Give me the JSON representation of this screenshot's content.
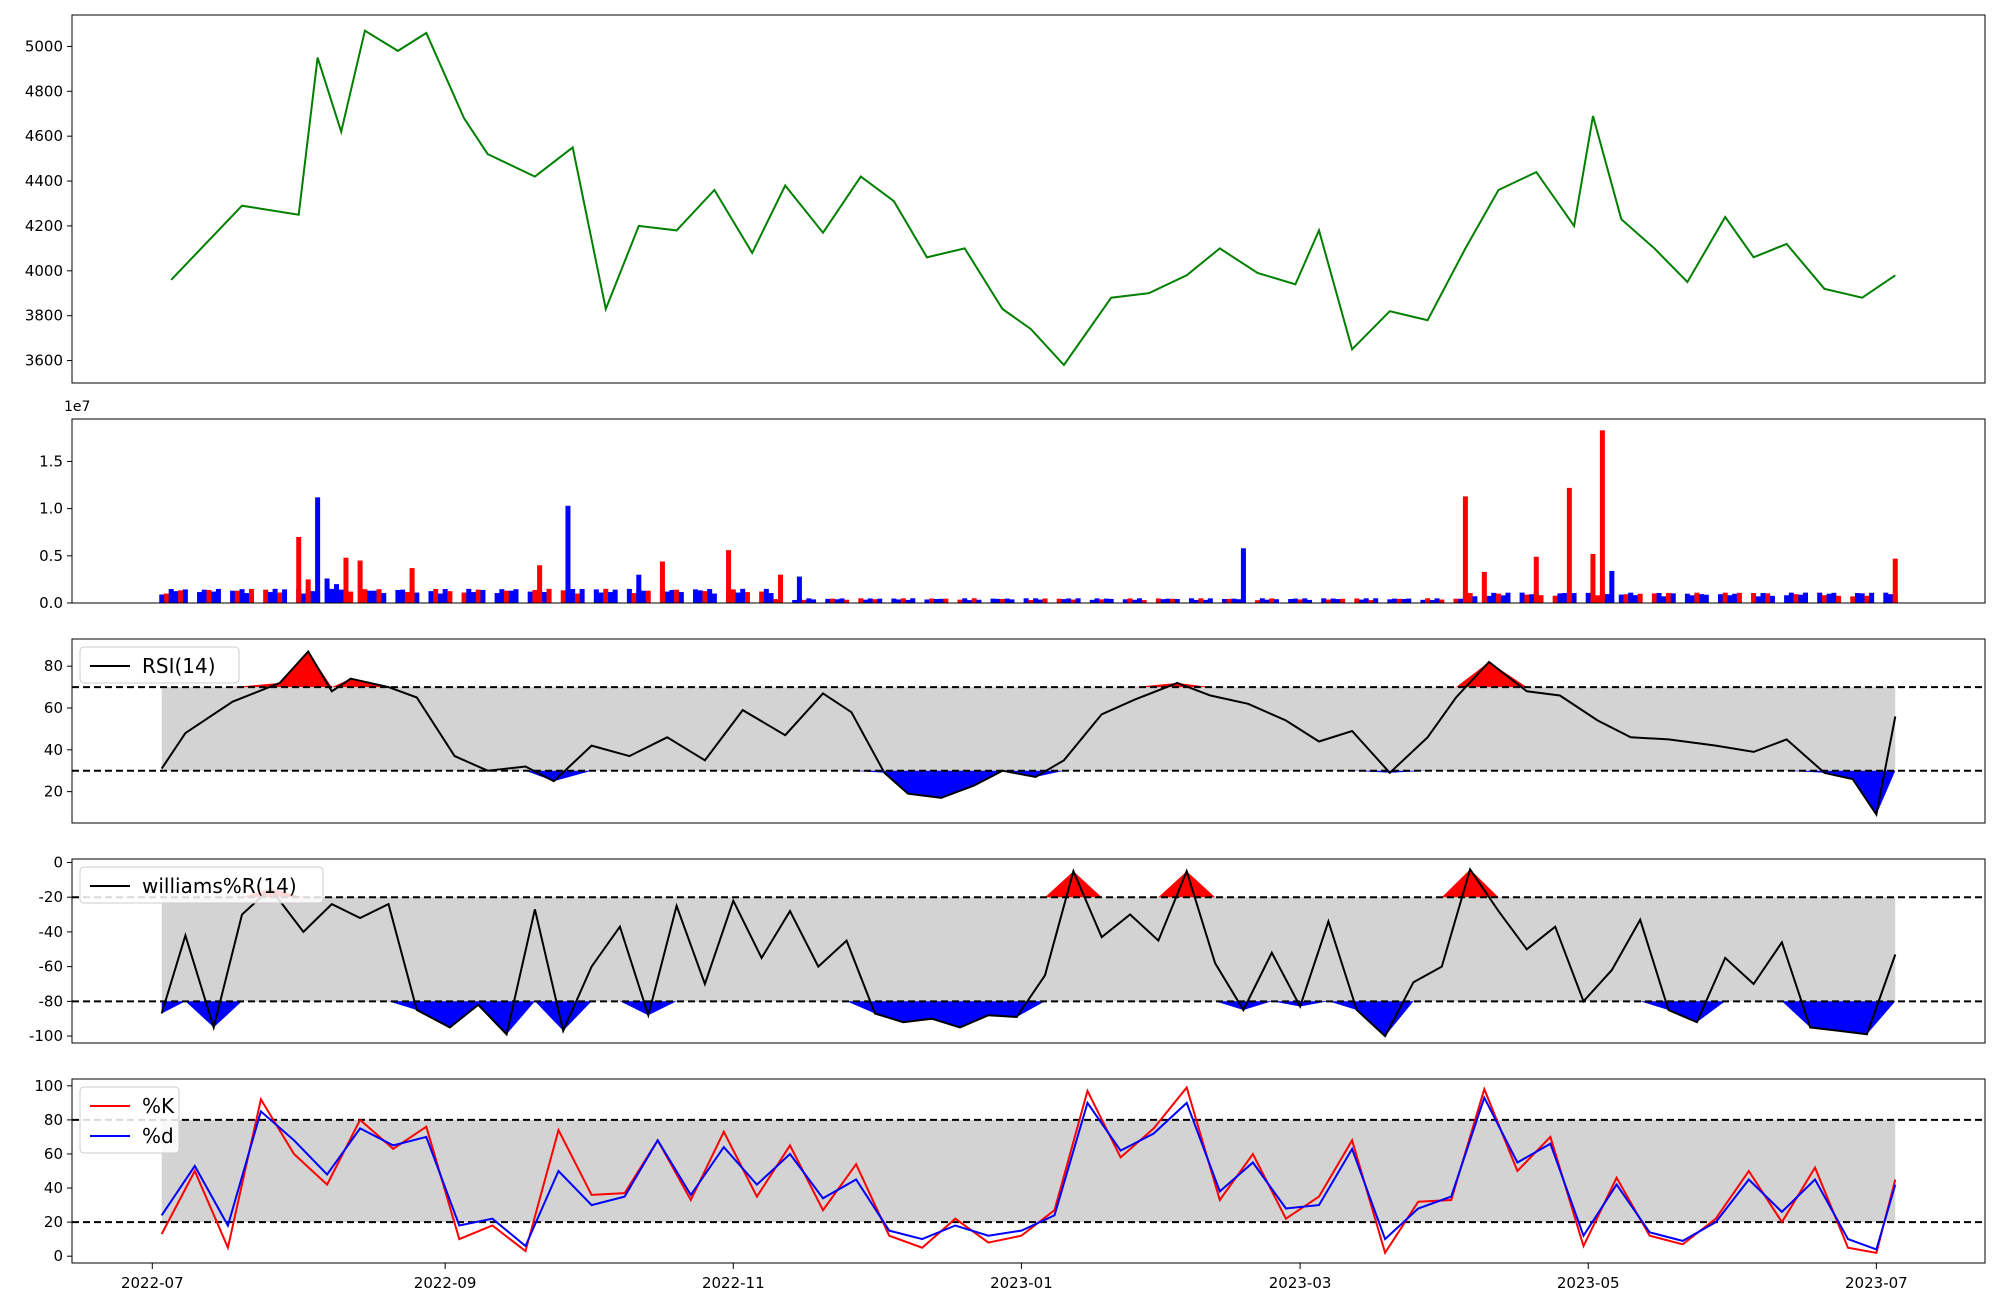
{
  "chart_data": [
    {
      "type": "line",
      "panel": "price",
      "ylim": [
        3500,
        5140
      ],
      "yticks": [
        "3600",
        "3800",
        "4000",
        "4200",
        "4400",
        "4600",
        "4800",
        "5000"
      ],
      "line_color": "#008000",
      "x": [
        "2022-07-05",
        "2022-07-20",
        "2022-08-01",
        "2022-08-05",
        "2022-08-10",
        "2022-08-15",
        "2022-08-22",
        "2022-08-28",
        "2022-09-05",
        "2022-09-10",
        "2022-09-20",
        "2022-09-28",
        "2022-10-05",
        "2022-10-12",
        "2022-10-20",
        "2022-10-28",
        "2022-11-05",
        "2022-11-12",
        "2022-11-20",
        "2022-11-28",
        "2022-12-05",
        "2022-12-12",
        "2022-12-20",
        "2022-12-28",
        "2023-01-03",
        "2023-01-10",
        "2023-01-20",
        "2023-01-28",
        "2023-02-05",
        "2023-02-12",
        "2023-02-20",
        "2023-02-28",
        "2023-03-05",
        "2023-03-12",
        "2023-03-20",
        "2023-03-28",
        "2023-04-05",
        "2023-04-12",
        "2023-04-20",
        "2023-04-28",
        "2023-05-02",
        "2023-05-08",
        "2023-05-15",
        "2023-05-22",
        "2023-05-30",
        "2023-06-05",
        "2023-06-12",
        "2023-06-20",
        "2023-06-28",
        "2023-07-05"
      ],
      "y": [
        3960,
        4290,
        4250,
        4950,
        4620,
        5070,
        4980,
        5060,
        4680,
        4520,
        4420,
        4550,
        3830,
        4200,
        4180,
        4360,
        4080,
        4380,
        4170,
        4420,
        4310,
        4060,
        4100,
        3830,
        3740,
        3580,
        3880,
        3900,
        3980,
        4100,
        3990,
        3940,
        4180,
        3650,
        3820,
        3780,
        4100,
        4360,
        4440,
        4200,
        4690,
        4230,
        4100,
        3950,
        4240,
        4060,
        4120,
        3920,
        3880,
        3980
      ]
    },
    {
      "type": "bar",
      "panel": "volume",
      "scale_label": "1e7",
      "ylim": [
        0,
        1.95
      ],
      "yticks": [
        "0.0",
        "0.5",
        "1.0",
        "1.5"
      ],
      "up_color": "#ff0000",
      "down_color": "#0000ff",
      "spikes": [
        {
          "x": "2022-07-03",
          "value": 0.09,
          "color": "blue"
        },
        {
          "x": "2022-08-01",
          "value": 0.7,
          "color": "red"
        },
        {
          "x": "2022-08-03",
          "value": 0.25,
          "color": "red"
        },
        {
          "x": "2022-08-05",
          "value": 1.12,
          "color": "blue"
        },
        {
          "x": "2022-08-07",
          "value": 0.26,
          "color": "blue"
        },
        {
          "x": "2022-08-09",
          "value": 0.2,
          "color": "blue"
        },
        {
          "x": "2022-08-11",
          "value": 0.48,
          "color": "red"
        },
        {
          "x": "2022-08-14",
          "value": 0.45,
          "color": "red"
        },
        {
          "x": "2022-08-25",
          "value": 0.37,
          "color": "red"
        },
        {
          "x": "2022-09-21",
          "value": 0.4,
          "color": "red"
        },
        {
          "x": "2022-09-27",
          "value": 1.03,
          "color": "blue"
        },
        {
          "x": "2022-10-12",
          "value": 0.3,
          "color": "blue"
        },
        {
          "x": "2022-10-17",
          "value": 0.44,
          "color": "red"
        },
        {
          "x": "2022-10-31",
          "value": 0.56,
          "color": "red"
        },
        {
          "x": "2022-11-11",
          "value": 0.3,
          "color": "red"
        },
        {
          "x": "2022-11-15",
          "value": 0.28,
          "color": "blue"
        },
        {
          "x": "2023-02-17",
          "value": 0.58,
          "color": "blue"
        },
        {
          "x": "2023-04-05",
          "value": 1.13,
          "color": "red"
        },
        {
          "x": "2023-04-09",
          "value": 0.33,
          "color": "red"
        },
        {
          "x": "2023-04-20",
          "value": 0.49,
          "color": "red"
        },
        {
          "x": "2023-04-27",
          "value": 1.22,
          "color": "red"
        },
        {
          "x": "2023-05-02",
          "value": 0.52,
          "color": "red"
        },
        {
          "x": "2023-05-04",
          "value": 1.83,
          "color": "red"
        },
        {
          "x": "2023-05-06",
          "value": 0.34,
          "color": "blue"
        },
        {
          "x": "2023-07-05",
          "value": 0.47,
          "color": "red"
        }
      ]
    },
    {
      "type": "line",
      "panel": "rsi",
      "legend": [
        "RSI(14)"
      ],
      "ylim": [
        5,
        93
      ],
      "yticks": [
        "20",
        "40",
        "60",
        "80"
      ],
      "bands": [
        30,
        70
      ],
      "over_color": "#ff0000",
      "under_color": "#0000ff",
      "band_fill": "#d3d3d3",
      "x": [
        "2022-07-03",
        "2022-07-08",
        "2022-07-18",
        "2022-07-28",
        "2022-08-03",
        "2022-08-08",
        "2022-08-12",
        "2022-08-20",
        "2022-08-26",
        "2022-09-03",
        "2022-09-10",
        "2022-09-18",
        "2022-09-24",
        "2022-10-02",
        "2022-10-10",
        "2022-10-18",
        "2022-10-26",
        "2022-11-03",
        "2022-11-12",
        "2022-11-20",
        "2022-11-26",
        "2022-12-03",
        "2022-12-08",
        "2022-12-15",
        "2022-12-22",
        "2022-12-28",
        "2023-01-04",
        "2023-01-10",
        "2023-01-18",
        "2023-01-25",
        "2023-02-03",
        "2023-02-10",
        "2023-02-18",
        "2023-02-26",
        "2023-03-05",
        "2023-03-12",
        "2023-03-20",
        "2023-03-28",
        "2023-04-03",
        "2023-04-10",
        "2023-04-18",
        "2023-04-25",
        "2023-05-03",
        "2023-05-10",
        "2023-05-18",
        "2023-05-28",
        "2023-06-05",
        "2023-06-12",
        "2023-06-20",
        "2023-06-26",
        "2023-07-01",
        "2023-07-05"
      ],
      "y": [
        31,
        48,
        63,
        72,
        87,
        68,
        74,
        70,
        65,
        37,
        30,
        32,
        25,
        42,
        37,
        46,
        35,
        59,
        47,
        67,
        58,
        29,
        19,
        17,
        23,
        30,
        27,
        35,
        57,
        64,
        72,
        66,
        62,
        54,
        44,
        49,
        29,
        46,
        65,
        82,
        68,
        66,
        54,
        46,
        45,
        42,
        39,
        45,
        29,
        26,
        9,
        56
      ]
    },
    {
      "type": "line",
      "panel": "williams",
      "legend": [
        "williams%R(14)"
      ],
      "ylim": [
        -104,
        2
      ],
      "yticks": [
        "0",
        "-20",
        "-40",
        "-60",
        "-80",
        "-100"
      ],
      "bands": [
        -80,
        -20
      ],
      "over_color": "#ff0000",
      "under_color": "#0000ff",
      "band_fill": "#d3d3d3",
      "x": [
        "2022-07-03",
        "2022-07-08",
        "2022-07-14",
        "2022-07-20",
        "2022-07-26",
        "2022-08-02",
        "2022-08-08",
        "2022-08-14",
        "2022-08-20",
        "2022-08-26",
        "2022-09-02",
        "2022-09-08",
        "2022-09-14",
        "2022-09-20",
        "2022-09-26",
        "2022-10-02",
        "2022-10-08",
        "2022-10-14",
        "2022-10-20",
        "2022-10-26",
        "2022-11-01",
        "2022-11-07",
        "2022-11-13",
        "2022-11-19",
        "2022-11-25",
        "2022-12-01",
        "2022-12-07",
        "2022-12-13",
        "2022-12-19",
        "2022-12-25",
        "2022-12-31",
        "2023-01-06",
        "2023-01-12",
        "2023-01-18",
        "2023-01-24",
        "2023-01-30",
        "2023-02-05",
        "2023-02-11",
        "2023-02-17",
        "2023-02-23",
        "2023-03-01",
        "2023-03-07",
        "2023-03-13",
        "2023-03-19",
        "2023-03-25",
        "2023-03-31",
        "2023-04-06",
        "2023-04-12",
        "2023-04-18",
        "2023-04-24",
        "2023-04-30",
        "2023-05-06",
        "2023-05-12",
        "2023-05-18",
        "2023-05-24",
        "2023-05-30",
        "2023-06-05",
        "2023-06-11",
        "2023-06-17",
        "2023-06-23",
        "2023-06-29",
        "2023-07-05"
      ],
      "y": [
        -87,
        -42,
        -95,
        -30,
        -15,
        -40,
        -24,
        -32,
        -24,
        -85,
        -95,
        -82,
        -99,
        -27,
        -97,
        -60,
        -37,
        -88,
        -25,
        -70,
        -22,
        -55,
        -28,
        -60,
        -45,
        -87,
        -92,
        -90,
        -95,
        -88,
        -89,
        -65,
        -5,
        -43,
        -30,
        -45,
        -5,
        -58,
        -85,
        -52,
        -83,
        -34,
        -85,
        -100,
        -69,
        -60,
        -4,
        -28,
        -50,
        -37,
        -80,
        -62,
        -33,
        -85,
        -92,
        -55,
        -70,
        -46,
        -95,
        -97,
        -99,
        -53
      ]
    },
    {
      "type": "line",
      "panel": "stochastic",
      "legend": [
        "%K",
        "%d"
      ],
      "ylim": [
        -4,
        104
      ],
      "yticks": [
        "0",
        "20",
        "40",
        "60",
        "80",
        "100"
      ],
      "bands": [
        20,
        80
      ],
      "band_fill": "#d3d3d3",
      "x": [
        "2022-07-03",
        "2022-07-10",
        "2022-07-17",
        "2022-07-24",
        "2022-07-31",
        "2022-08-07",
        "2022-08-14",
        "2022-08-21",
        "2022-08-28",
        "2022-09-04",
        "2022-09-11",
        "2022-09-18",
        "2022-09-25",
        "2022-10-02",
        "2022-10-09",
        "2022-10-16",
        "2022-10-23",
        "2022-10-30",
        "2022-11-06",
        "2022-11-13",
        "2022-11-20",
        "2022-11-27",
        "2022-12-04",
        "2022-12-11",
        "2022-12-18",
        "2022-12-25",
        "2023-01-01",
        "2023-01-08",
        "2023-01-15",
        "2023-01-22",
        "2023-01-29",
        "2023-02-05",
        "2023-02-12",
        "2023-02-19",
        "2023-02-26",
        "2023-03-05",
        "2023-03-12",
        "2023-03-19",
        "2023-03-26",
        "2023-04-02",
        "2023-04-09",
        "2023-04-16",
        "2023-04-23",
        "2023-04-30",
        "2023-05-07",
        "2023-05-14",
        "2023-05-21",
        "2023-05-28",
        "2023-06-04",
        "2023-06-11",
        "2023-06-18",
        "2023-06-25",
        "2023-07-01",
        "2023-07-05"
      ],
      "series": [
        {
          "name": "%K",
          "color": "#ff0000",
          "values": [
            13,
            50,
            5,
            92,
            60,
            42,
            80,
            63,
            76,
            10,
            18,
            3,
            74,
            36,
            37,
            68,
            33,
            73,
            35,
            65,
            27,
            54,
            12,
            5,
            22,
            8,
            12,
            27,
            97,
            58,
            75,
            99,
            33,
            60,
            22,
            35,
            68,
            2,
            32,
            33,
            98,
            50,
            70,
            6,
            46,
            12,
            7,
            22,
            50,
            20,
            52,
            5,
            2,
            45
          ]
        },
        {
          "name": "%d",
          "color": "#0000ff",
          "values": [
            24,
            53,
            18,
            85,
            68,
            48,
            75,
            65,
            70,
            18,
            22,
            6,
            50,
            30,
            35,
            68,
            36,
            64,
            42,
            60,
            34,
            45,
            15,
            10,
            18,
            12,
            15,
            24,
            90,
            62,
            72,
            90,
            38,
            55,
            28,
            30,
            63,
            10,
            28,
            35,
            93,
            55,
            66,
            12,
            42,
            14,
            9,
            20,
            45,
            26,
            45,
            10,
            4,
            42
          ]
        }
      ]
    }
  ],
  "x_axis": {
    "range": [
      "2022-06-14",
      "2023-07-24"
    ],
    "ticks": [
      "2022-07",
      "2022-09",
      "2022-11",
      "2023-01",
      "2023-03",
      "2023-05",
      "2023-07"
    ]
  }
}
